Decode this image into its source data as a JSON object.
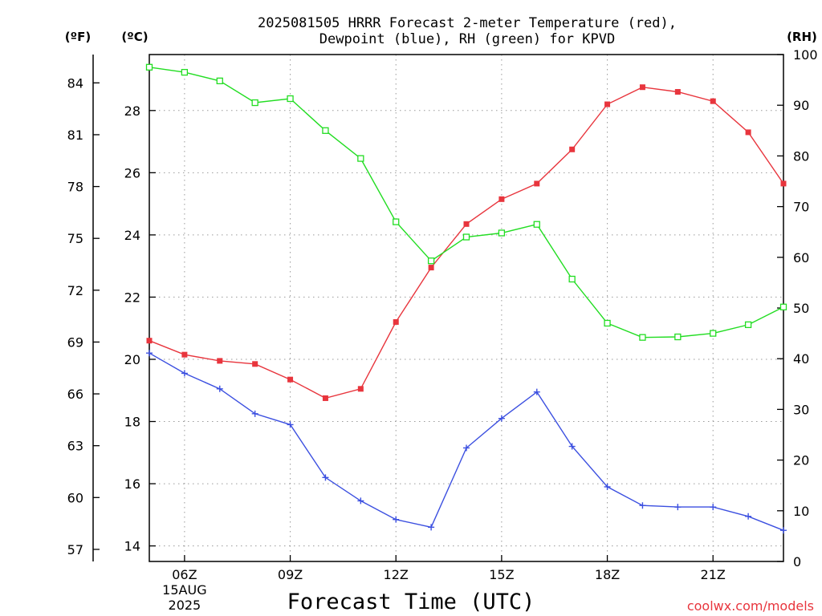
{
  "chart_data": {
    "type": "line",
    "title_line1": "2025081505 HRRR Forecast 2-meter Temperature (red),",
    "title_line2": "Dewpoint (blue), RH (green) for KPVD",
    "xlabel": "Forecast Time (UTC)",
    "watermark": "coolwx.com/models",
    "left_outer_axis_label": "(ºF)",
    "left_inner_axis_label": "(ºC)",
    "right_axis_label": "(RH)",
    "x_hours": [
      5,
      6,
      7,
      8,
      9,
      10,
      11,
      12,
      13,
      14,
      15,
      16,
      17,
      18,
      19,
      20,
      21,
      22,
      23
    ],
    "x_range": [
      5,
      23
    ],
    "x_ticks": [
      {
        "hour": 6,
        "label": "06Z",
        "sub1": "15AUG",
        "sub2": "2025"
      },
      {
        "hour": 9,
        "label": "09Z"
      },
      {
        "hour": 12,
        "label": "12Z"
      },
      {
        "hour": 15,
        "label": "15Z"
      },
      {
        "hour": 18,
        "label": "18Z"
      },
      {
        "hour": 21,
        "label": "21Z"
      }
    ],
    "celsius_range": [
      13.5,
      29.8
    ],
    "celsius_ticks": [
      "14",
      "16",
      "18",
      "20",
      "22",
      "24",
      "26",
      "28"
    ],
    "fahrenheit_ticks": [
      "57",
      "60",
      "63",
      "66",
      "69",
      "72",
      "75",
      "78",
      "81",
      "84"
    ],
    "rh_range": [
      0,
      100
    ],
    "rh_ticks": [
      "0",
      "10",
      "20",
      "30",
      "40",
      "50",
      "60",
      "70",
      "80",
      "90",
      "100"
    ],
    "grid": true,
    "series": [
      {
        "key": "temperature",
        "unit": "C",
        "color": "#e8353d",
        "marker": "filled-square",
        "values": [
          20.6,
          20.15,
          19.95,
          19.85,
          19.35,
          18.75,
          19.05,
          21.2,
          22.95,
          24.35,
          25.15,
          25.65,
          26.75,
          28.2,
          28.75,
          28.6,
          28.3,
          27.3,
          25.65
        ]
      },
      {
        "key": "dewpoint",
        "unit": "C",
        "color": "#3b4fe0",
        "marker": "plus",
        "values": [
          20.2,
          19.55,
          19.05,
          18.25,
          17.9,
          16.2,
          15.45,
          14.85,
          14.6,
          17.15,
          18.1,
          18.95,
          17.2,
          15.9,
          15.3,
          15.25,
          15.25,
          14.95,
          14.5
        ]
      },
      {
        "key": "rh",
        "unit": "%",
        "color": "#22dd22",
        "marker": "open-square",
        "values": [
          97.5,
          96.5,
          94.8,
          90.5,
          91.3,
          85.0,
          79.5,
          67.0,
          59.3,
          64.0,
          64.8,
          66.5,
          55.7,
          47.0,
          44.2,
          44.3,
          45.0,
          46.7,
          50.2
        ]
      }
    ]
  }
}
